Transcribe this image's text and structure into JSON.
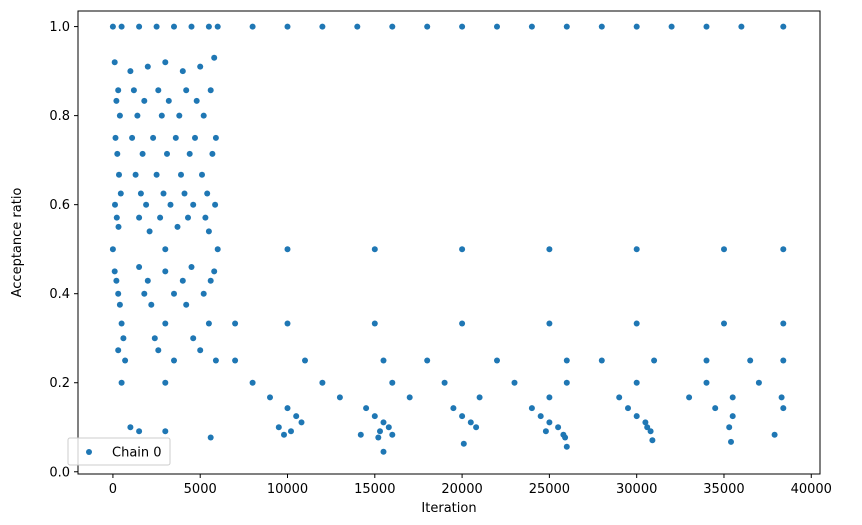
{
  "chart_data": {
    "type": "scatter",
    "title": "",
    "xlabel": "Iteration",
    "ylabel": "Acceptance ratio",
    "xlim": [
      -2000,
      40500
    ],
    "ylim": [
      -0.005,
      1.035
    ],
    "xticks": [
      0,
      5000,
      10000,
      15000,
      20000,
      25000,
      30000,
      35000,
      40000
    ],
    "yticks": [
      0.0,
      0.2,
      0.4,
      0.6,
      0.8,
      1.0
    ],
    "xtick_labels": [
      "0",
      "5000",
      "10000",
      "15000",
      "20000",
      "25000",
      "30000",
      "35000",
      "40000"
    ],
    "ytick_labels": [
      "0.0",
      "0.2",
      "0.4",
      "0.6",
      "0.8",
      "1.0"
    ],
    "grid": false,
    "legend": {
      "position": "lower-left",
      "entries": [
        "Chain 0"
      ]
    },
    "series": [
      {
        "name": "Chain 0",
        "color": "#1f77b4",
        "marker": "circle",
        "points": [
          [
            0,
            1.0
          ],
          [
            500,
            1.0
          ],
          [
            1500,
            1.0
          ],
          [
            2500,
            1.0
          ],
          [
            3500,
            1.0
          ],
          [
            4500,
            1.0
          ],
          [
            5500,
            1.0
          ],
          [
            6000,
            1.0
          ],
          [
            8000,
            1.0
          ],
          [
            10000,
            1.0
          ],
          [
            12000,
            1.0
          ],
          [
            14000,
            1.0
          ],
          [
            16000,
            1.0
          ],
          [
            18000,
            1.0
          ],
          [
            20000,
            1.0
          ],
          [
            22000,
            1.0
          ],
          [
            24000,
            1.0
          ],
          [
            26000,
            1.0
          ],
          [
            28000,
            1.0
          ],
          [
            30000,
            1.0
          ],
          [
            32000,
            1.0
          ],
          [
            34000,
            1.0
          ],
          [
            36000,
            1.0
          ],
          [
            38400,
            1.0
          ],
          [
            100,
            0.92
          ],
          [
            1000,
            0.9
          ],
          [
            2000,
            0.91
          ],
          [
            3000,
            0.92
          ],
          [
            4000,
            0.9
          ],
          [
            5000,
            0.91
          ],
          [
            5800,
            0.93
          ],
          [
            300,
            0.857
          ],
          [
            1200,
            0.857
          ],
          [
            2600,
            0.857
          ],
          [
            4200,
            0.857
          ],
          [
            5600,
            0.857
          ],
          [
            200,
            0.833
          ],
          [
            1800,
            0.833
          ],
          [
            3200,
            0.833
          ],
          [
            4800,
            0.833
          ],
          [
            400,
            0.8
          ],
          [
            1400,
            0.8
          ],
          [
            2800,
            0.8
          ],
          [
            3800,
            0.8
          ],
          [
            5200,
            0.8
          ],
          [
            150,
            0.75
          ],
          [
            1100,
            0.75
          ],
          [
            2300,
            0.75
          ],
          [
            3600,
            0.75
          ],
          [
            4700,
            0.75
          ],
          [
            5900,
            0.75
          ],
          [
            250,
            0.714
          ],
          [
            1700,
            0.714
          ],
          [
            3100,
            0.714
          ],
          [
            4400,
            0.714
          ],
          [
            5700,
            0.714
          ],
          [
            350,
            0.667
          ],
          [
            1300,
            0.667
          ],
          [
            2500,
            0.667
          ],
          [
            3900,
            0.667
          ],
          [
            5100,
            0.667
          ],
          [
            450,
            0.625
          ],
          [
            1600,
            0.625
          ],
          [
            2900,
            0.625
          ],
          [
            4100,
            0.625
          ],
          [
            5400,
            0.625
          ],
          [
            120,
            0.6
          ],
          [
            1900,
            0.6
          ],
          [
            3300,
            0.6
          ],
          [
            4600,
            0.6
          ],
          [
            5850,
            0.6
          ],
          [
            220,
            0.571
          ],
          [
            1500,
            0.571
          ],
          [
            2700,
            0.571
          ],
          [
            4300,
            0.571
          ],
          [
            5300,
            0.571
          ],
          [
            320,
            0.55
          ],
          [
            2100,
            0.54
          ],
          [
            3700,
            0.55
          ],
          [
            5500,
            0.54
          ],
          [
            0,
            0.5
          ],
          [
            3000,
            0.5
          ],
          [
            6000,
            0.5
          ],
          [
            10000,
            0.5
          ],
          [
            15000,
            0.5
          ],
          [
            20000,
            0.5
          ],
          [
            25000,
            0.5
          ],
          [
            30000,
            0.5
          ],
          [
            35000,
            0.5
          ],
          [
            38400,
            0.5
          ],
          [
            100,
            0.45
          ],
          [
            1500,
            0.46
          ],
          [
            3000,
            0.45
          ],
          [
            4500,
            0.46
          ],
          [
            5800,
            0.45
          ],
          [
            200,
            0.429
          ],
          [
            2000,
            0.429
          ],
          [
            4000,
            0.429
          ],
          [
            5600,
            0.429
          ],
          [
            300,
            0.4
          ],
          [
            1800,
            0.4
          ],
          [
            3500,
            0.4
          ],
          [
            5200,
            0.4
          ],
          [
            400,
            0.375
          ],
          [
            2200,
            0.375
          ],
          [
            4200,
            0.375
          ],
          [
            500,
            0.333
          ],
          [
            3000,
            0.333
          ],
          [
            5500,
            0.333
          ],
          [
            7000,
            0.333
          ],
          [
            10000,
            0.333
          ],
          [
            15000,
            0.333
          ],
          [
            20000,
            0.333
          ],
          [
            25000,
            0.333
          ],
          [
            30000,
            0.333
          ],
          [
            35000,
            0.333
          ],
          [
            38400,
            0.333
          ],
          [
            600,
            0.3
          ],
          [
            2400,
            0.3
          ],
          [
            4600,
            0.3
          ],
          [
            300,
            0.273
          ],
          [
            2600,
            0.273
          ],
          [
            5000,
            0.273
          ],
          [
            700,
            0.25
          ],
          [
            3500,
            0.25
          ],
          [
            5900,
            0.25
          ],
          [
            7000,
            0.25
          ],
          [
            11000,
            0.25
          ],
          [
            15500,
            0.25
          ],
          [
            18000,
            0.25
          ],
          [
            22000,
            0.25
          ],
          [
            26000,
            0.25
          ],
          [
            28000,
            0.25
          ],
          [
            31000,
            0.25
          ],
          [
            34000,
            0.25
          ],
          [
            36500,
            0.25
          ],
          [
            38400,
            0.25
          ],
          [
            500,
            0.2
          ],
          [
            3000,
            0.2
          ],
          [
            8000,
            0.2
          ],
          [
            12000,
            0.2
          ],
          [
            16000,
            0.2
          ],
          [
            19000,
            0.2
          ],
          [
            23000,
            0.2
          ],
          [
            26000,
            0.2
          ],
          [
            30000,
            0.2
          ],
          [
            34000,
            0.2
          ],
          [
            37000,
            0.2
          ],
          [
            9000,
            0.167
          ],
          [
            13000,
            0.167
          ],
          [
            17000,
            0.167
          ],
          [
            21000,
            0.167
          ],
          [
            25000,
            0.167
          ],
          [
            29000,
            0.167
          ],
          [
            33000,
            0.167
          ],
          [
            35500,
            0.167
          ],
          [
            38300,
            0.167
          ],
          [
            10000,
            0.143
          ],
          [
            14500,
            0.143
          ],
          [
            19500,
            0.143
          ],
          [
            24000,
            0.143
          ],
          [
            29500,
            0.143
          ],
          [
            34500,
            0.143
          ],
          [
            38400,
            0.143
          ],
          [
            10500,
            0.125
          ],
          [
            15000,
            0.125
          ],
          [
            20000,
            0.125
          ],
          [
            24500,
            0.125
          ],
          [
            30000,
            0.125
          ],
          [
            35500,
            0.125
          ],
          [
            10800,
            0.111
          ],
          [
            15500,
            0.111
          ],
          [
            20500,
            0.111
          ],
          [
            25000,
            0.111
          ],
          [
            30500,
            0.111
          ],
          [
            1000,
            0.1
          ],
          [
            9500,
            0.1
          ],
          [
            15800,
            0.1
          ],
          [
            20800,
            0.1
          ],
          [
            25500,
            0.1
          ],
          [
            30600,
            0.1
          ],
          [
            35300,
            0.1
          ],
          [
            1500,
            0.091
          ],
          [
            3000,
            0.091
          ],
          [
            10200,
            0.091
          ],
          [
            15300,
            0.091
          ],
          [
            24800,
            0.091
          ],
          [
            30800,
            0.091
          ],
          [
            9800,
            0.083
          ],
          [
            14200,
            0.083
          ],
          [
            16000,
            0.083
          ],
          [
            25800,
            0.083
          ],
          [
            37900,
            0.083
          ],
          [
            5600,
            0.077
          ],
          [
            15200,
            0.077
          ],
          [
            25900,
            0.077
          ],
          [
            30900,
            0.071
          ],
          [
            35400,
            0.067
          ],
          [
            20100,
            0.063
          ],
          [
            15500,
            0.045
          ],
          [
            26000,
            0.056
          ]
        ]
      }
    ]
  }
}
